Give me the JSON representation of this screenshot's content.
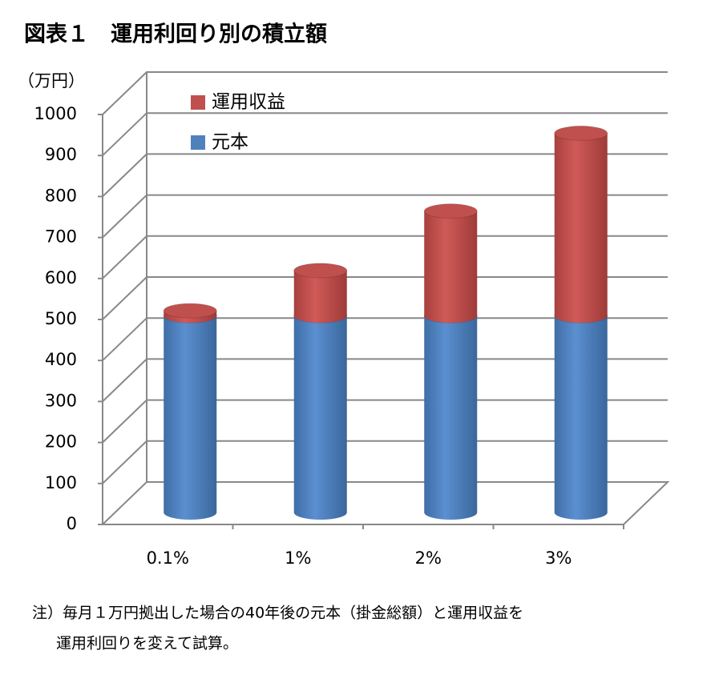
{
  "chart_data": {
    "type": "bar3d_stacked",
    "title": "図表１　運用利回り別の積立額",
    "y_label": "（万円）",
    "categories": [
      "0.1%",
      "1%",
      "2%",
      "3%"
    ],
    "series": [
      {
        "name": "元本",
        "color": "#4f81bd",
        "values": [
          480,
          480,
          480,
          480
        ]
      },
      {
        "name": "運用収益",
        "color": "#c0504d",
        "values": [
          12,
          110,
          255,
          445
        ]
      }
    ],
    "ylim": [
      0,
      1000
    ],
    "yticks": [
      0,
      100,
      200,
      300,
      400,
      500,
      600,
      700,
      800,
      900,
      1000
    ],
    "grid": true,
    "notes": [
      "注）毎月１万円拠出した場合の40年後の元本（掛金総額）と運用収益を",
      "運用利回りを変えて試算。"
    ]
  }
}
